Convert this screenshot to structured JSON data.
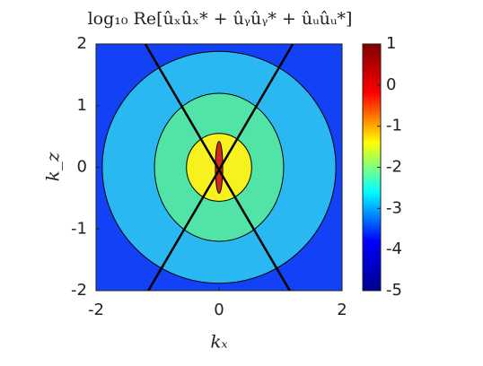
{
  "chart_data": {
    "type": "contour",
    "title": "log₁₀ Re[ûₓûₓ* + ûᵧûᵧ* + ûᵤûᵤ*]",
    "xlabel": "kₓ",
    "ylabel": "k_z",
    "xlim": [
      -2,
      2
    ],
    "xticks": [
      -2,
      0,
      2
    ],
    "ylim": [
      -2,
      2
    ],
    "yticks": [
      -2,
      -1,
      0,
      1,
      2
    ],
    "clim": [
      -5,
      1
    ],
    "cticks": [
      -5,
      -4,
      -3,
      -2,
      -1,
      0,
      1
    ],
    "colormap": [
      "#00008f",
      "#0000ff",
      "#00ffff",
      "#ffff00",
      "#ff0000",
      "#800000"
    ],
    "background": {
      "level": -4,
      "color": "#1341f5"
    },
    "regions": [
      {
        "level": -3,
        "rx": 1.9,
        "rz": 1.88,
        "color": "#2ab8f2"
      },
      {
        "level": -2,
        "rx": 1.05,
        "rz": 1.2,
        "color": "#52e3a6"
      },
      {
        "level": -1,
        "rx": 0.53,
        "rz": 0.55,
        "color": "#f7f21e"
      },
      {
        "level": 0,
        "rx": 0.06,
        "rz": 0.42,
        "color": "#d22a1a"
      }
    ],
    "lines": [
      {
        "x": [
          -1.2,
          1.15
        ],
        "y": [
          2,
          -2
        ]
      },
      {
        "x": [
          1.2,
          -1.15
        ],
        "y": [
          2,
          -2
        ]
      }
    ]
  }
}
